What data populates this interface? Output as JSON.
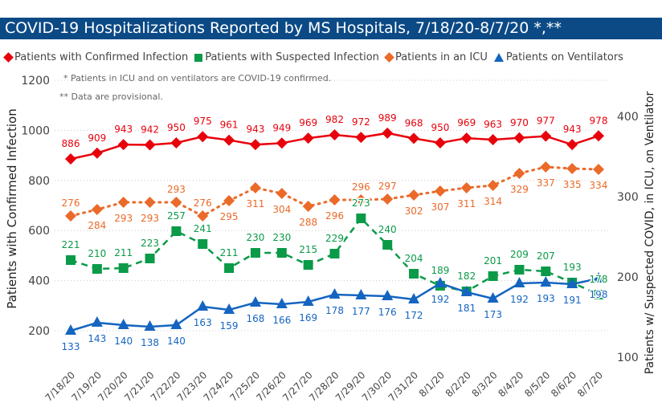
{
  "title": "COVID-19 Hospitalizations Reported by MS Hospitals, 7/18/20-8/7/20 *,**",
  "notes": [
    "* Patients in ICU and on ventilators are COVID-19 confirmed.",
    "** Data are provisional."
  ],
  "chart_data": {
    "type": "line",
    "title": "COVID-19 Hospitalizations Reported by MS Hospitals, 7/18/20-8/7/20 *,**",
    "ylabel": "Patients with Confirmed Infection",
    "y2label": "Patients w/ Suspected COVID, in ICU, on Ventilator",
    "ylim": [
      200,
      1200
    ],
    "yticks": [
      200,
      400,
      600,
      800,
      1000,
      1200
    ],
    "y2lim": [
      100,
      400
    ],
    "y2ticks": [
      100,
      200,
      300,
      400
    ],
    "grid": true,
    "legend": "top",
    "categories": [
      "7/18/20",
      "7/19/20",
      "7/20/20",
      "7/21/20",
      "7/22/20",
      "7/23/20",
      "7/24/20",
      "7/25/20",
      "7/26/20",
      "7/27/20",
      "7/28/20",
      "7/29/20",
      "7/30/20",
      "7/31/20",
      "8/1/20",
      "8/2/20",
      "8/3/20",
      "8/4/20",
      "8/5/20",
      "8/6/20",
      "8/7/20"
    ],
    "series": [
      {
        "name": "Patients with Confirmed Infection",
        "axis": "left",
        "color": "#e8000b",
        "marker": "diamond",
        "dash": false,
        "values": [
          886,
          909,
          943,
          942,
          950,
          975,
          961,
          943,
          949,
          969,
          982,
          972,
          989,
          968,
          950,
          969,
          963,
          970,
          977,
          943,
          978
        ]
      },
      {
        "name": "Patients with Suspected Infection",
        "axis": "right",
        "color": "#0a9a48",
        "marker": "square",
        "dash": true,
        "values": [
          221,
          210,
          211,
          223,
          257,
          241,
          211,
          230,
          230,
          215,
          229,
          273,
          240,
          204,
          189,
          182,
          201,
          209,
          207,
          193,
          178
        ]
      },
      {
        "name": "Patients in an ICU",
        "axis": "right",
        "color": "#ea6a2a",
        "marker": "diamond",
        "dash": "dot",
        "values": [
          276,
          284,
          293,
          293,
          293,
          276,
          295,
          311,
          304,
          288,
          296,
          296,
          297,
          302,
          307,
          311,
          314,
          329,
          337,
          335,
          334
        ]
      },
      {
        "name": "Patients on Ventilators",
        "axis": "right",
        "color": "#1565c0",
        "marker": "triangle",
        "dash": false,
        "values": [
          133,
          143,
          140,
          138,
          140,
          163,
          159,
          168,
          166,
          169,
          178,
          177,
          176,
          172,
          192,
          181,
          173,
          192,
          193,
          191,
          198
        ]
      }
    ]
  }
}
